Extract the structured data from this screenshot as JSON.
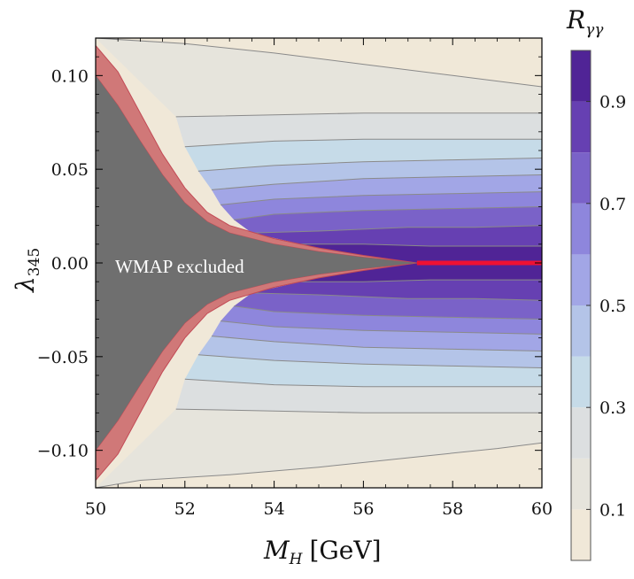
{
  "chart_data": {
    "type": "contour",
    "xlabel": {
      "main": "M",
      "sub": "H",
      "unit": "[GeV]"
    },
    "ylabel": {
      "main": "λ",
      "sub": "345"
    },
    "xlim": [
      50,
      60
    ],
    "ylim": [
      -0.12,
      0.12
    ],
    "x_ticks": [
      "50",
      "52",
      "54",
      "56",
      "58",
      "60"
    ],
    "x_tick_values": [
      50,
      52,
      54,
      56,
      58,
      60
    ],
    "y_ticks": [
      "0.10",
      "0.05",
      "0.00",
      "−0.05",
      "−0.10"
    ],
    "y_tick_values": [
      0.1,
      0.05,
      0.0,
      -0.05,
      -0.1
    ],
    "region_label": "WMAP excluded",
    "colorbar": {
      "title_main": "R",
      "title_sub": "γγ",
      "range": [
        0,
        1
      ],
      "tick_labels": [
        "0.1",
        "0.3",
        "0.5",
        "0.7",
        "0.9"
      ],
      "tick_values": [
        0.1,
        0.3,
        0.5,
        0.7,
        0.9
      ],
      "levels": [
        0,
        0.1,
        0.2,
        0.3,
        0.4,
        0.5,
        0.6,
        0.7,
        0.8,
        0.9,
        1.0
      ],
      "colors": [
        "#f0e8d8",
        "#e6e4dc",
        "#dcdfe0",
        "#c6dbe8",
        "#b4c4e8",
        "#a2a6e6",
        "#8e86dc",
        "#7a62c8",
        "#6640b2",
        "#502496"
      ]
    },
    "contour_lines_upper": [
      {
        "level": 0.1,
        "points": [
          [
            50.0,
            0.12
          ],
          [
            52,
            0.117
          ],
          [
            54,
            0.112
          ],
          [
            56,
            0.106
          ],
          [
            58,
            0.1
          ],
          [
            60,
            0.094
          ]
        ]
      },
      {
        "level": 0.2,
        "points": [
          [
            51.8,
            0.078
          ],
          [
            54,
            0.079
          ],
          [
            56,
            0.08
          ],
          [
            58,
            0.08
          ],
          [
            60,
            0.08
          ]
        ]
      },
      {
        "level": 0.3,
        "points": [
          [
            52.0,
            0.062
          ],
          [
            54,
            0.065
          ],
          [
            56,
            0.066
          ],
          [
            58,
            0.066
          ],
          [
            60,
            0.066
          ]
        ]
      },
      {
        "level": 0.4,
        "points": [
          [
            52.3,
            0.049
          ],
          [
            54,
            0.052
          ],
          [
            56,
            0.054
          ],
          [
            58,
            0.055
          ],
          [
            60,
            0.056
          ]
        ]
      },
      {
        "level": 0.5,
        "points": [
          [
            52.6,
            0.039
          ],
          [
            54,
            0.042
          ],
          [
            56,
            0.045
          ],
          [
            58,
            0.046
          ],
          [
            60,
            0.047
          ]
        ]
      },
      {
        "level": 0.6,
        "points": [
          [
            52.8,
            0.031
          ],
          [
            54,
            0.034
          ],
          [
            56,
            0.036
          ],
          [
            58,
            0.037
          ],
          [
            60,
            0.038
          ]
        ]
      },
      {
        "level": 0.7,
        "points": [
          [
            53.1,
            0.023
          ],
          [
            54,
            0.026
          ],
          [
            56,
            0.028
          ],
          [
            58,
            0.029
          ],
          [
            60,
            0.03
          ]
        ]
      },
      {
        "level": 0.8,
        "points": [
          [
            53.5,
            0.016
          ],
          [
            55,
            0.017
          ],
          [
            57,
            0.019
          ],
          [
            58.5,
            0.019
          ],
          [
            60,
            0.02
          ]
        ]
      },
      {
        "level": 0.9,
        "points": [
          [
            54.6,
            0.01
          ],
          [
            56,
            0.01
          ],
          [
            57.5,
            0.009
          ],
          [
            59,
            0.009
          ],
          [
            60,
            0.009
          ]
        ]
      }
    ],
    "contour_lines_lower": [
      {
        "level": 0.1,
        "points": [
          [
            50.0,
            -0.12
          ],
          [
            51,
            -0.116
          ],
          [
            53,
            -0.113
          ],
          [
            55,
            -0.109
          ],
          [
            57,
            -0.104
          ],
          [
            59,
            -0.099
          ],
          [
            60,
            -0.096
          ]
        ]
      },
      {
        "level": 0.2,
        "points": [
          [
            51.8,
            -0.078
          ],
          [
            54,
            -0.079
          ],
          [
            56,
            -0.08
          ],
          [
            58,
            -0.08
          ],
          [
            60,
            -0.08
          ]
        ]
      },
      {
        "level": 0.3,
        "points": [
          [
            52.0,
            -0.062
          ],
          [
            54,
            -0.065
          ],
          [
            56,
            -0.066
          ],
          [
            58,
            -0.066
          ],
          [
            60,
            -0.066
          ]
        ]
      },
      {
        "level": 0.4,
        "points": [
          [
            52.3,
            -0.049
          ],
          [
            54,
            -0.052
          ],
          [
            56,
            -0.054
          ],
          [
            58,
            -0.055
          ],
          [
            60,
            -0.056
          ]
        ]
      },
      {
        "level": 0.5,
        "points": [
          [
            52.6,
            -0.039
          ],
          [
            54,
            -0.042
          ],
          [
            56,
            -0.045
          ],
          [
            58,
            -0.046
          ],
          [
            60,
            -0.047
          ]
        ]
      },
      {
        "level": 0.6,
        "points": [
          [
            52.8,
            -0.031
          ],
          [
            54,
            -0.034
          ],
          [
            56,
            -0.036
          ],
          [
            58,
            -0.037
          ],
          [
            60,
            -0.038
          ]
        ]
      },
      {
        "level": 0.7,
        "points": [
          [
            53.1,
            -0.023
          ],
          [
            54,
            -0.026
          ],
          [
            56,
            -0.028
          ],
          [
            58,
            -0.029
          ],
          [
            60,
            -0.03
          ]
        ]
      },
      {
        "level": 0.8,
        "points": [
          [
            53.5,
            -0.016
          ],
          [
            55,
            -0.017
          ],
          [
            57,
            -0.019
          ],
          [
            58.5,
            -0.019
          ],
          [
            60,
            -0.02
          ]
        ]
      },
      {
        "level": 0.9,
        "points": [
          [
            54.6,
            -0.01
          ],
          [
            56,
            -0.01
          ],
          [
            57.5,
            -0.009
          ],
          [
            59,
            -0.009
          ],
          [
            60,
            -0.009
          ]
        ]
      }
    ],
    "wmap_boundary_upper": [
      [
        50.0,
        0.1
      ],
      [
        50.5,
        0.084
      ],
      [
        51.0,
        0.065
      ],
      [
        51.5,
        0.047
      ],
      [
        52.0,
        0.032
      ],
      [
        52.5,
        0.022
      ],
      [
        53.0,
        0.016
      ],
      [
        54.0,
        0.01
      ],
      [
        55.0,
        0.006
      ],
      [
        56.0,
        0.003
      ],
      [
        57.2,
        0.0
      ]
    ],
    "red_band_upper_edge": [
      [
        50.0,
        0.116
      ],
      [
        50.5,
        0.102
      ],
      [
        51.0,
        0.08
      ],
      [
        51.5,
        0.058
      ],
      [
        52.0,
        0.04
      ],
      [
        52.5,
        0.027
      ],
      [
        53.0,
        0.02
      ],
      [
        54.0,
        0.013
      ],
      [
        55.0,
        0.008
      ],
      [
        56.0,
        0.004
      ],
      [
        57.2,
        0.0
      ]
    ],
    "wmap_boundary_lower": [
      [
        50.0,
        -0.1
      ],
      [
        50.5,
        -0.084
      ],
      [
        51.0,
        -0.065
      ],
      [
        51.5,
        -0.047
      ],
      [
        52.0,
        -0.032
      ],
      [
        52.5,
        -0.022
      ],
      [
        53.0,
        -0.016
      ],
      [
        54.0,
        -0.01
      ],
      [
        55.0,
        -0.006
      ],
      [
        56.0,
        -0.003
      ],
      [
        57.2,
        0.0
      ]
    ],
    "red_band_lower_edge": [
      [
        50.0,
        -0.116
      ],
      [
        50.5,
        -0.102
      ],
      [
        51.0,
        -0.08
      ],
      [
        51.5,
        -0.058
      ],
      [
        52.0,
        -0.04
      ],
      [
        52.5,
        -0.027
      ],
      [
        53.0,
        -0.02
      ],
      [
        54.0,
        -0.013
      ],
      [
        55.0,
        -0.008
      ],
      [
        56.0,
        -0.004
      ],
      [
        57.2,
        0.0
      ]
    ],
    "red_line": [
      [
        57.2,
        0.0
      ],
      [
        60.0,
        0.0
      ]
    ],
    "colors": {
      "wmap_region": "#6f6f6f",
      "red_band": "#d07878",
      "red_line": "#ee1133",
      "contour_line": "#8a8a8a"
    }
  }
}
